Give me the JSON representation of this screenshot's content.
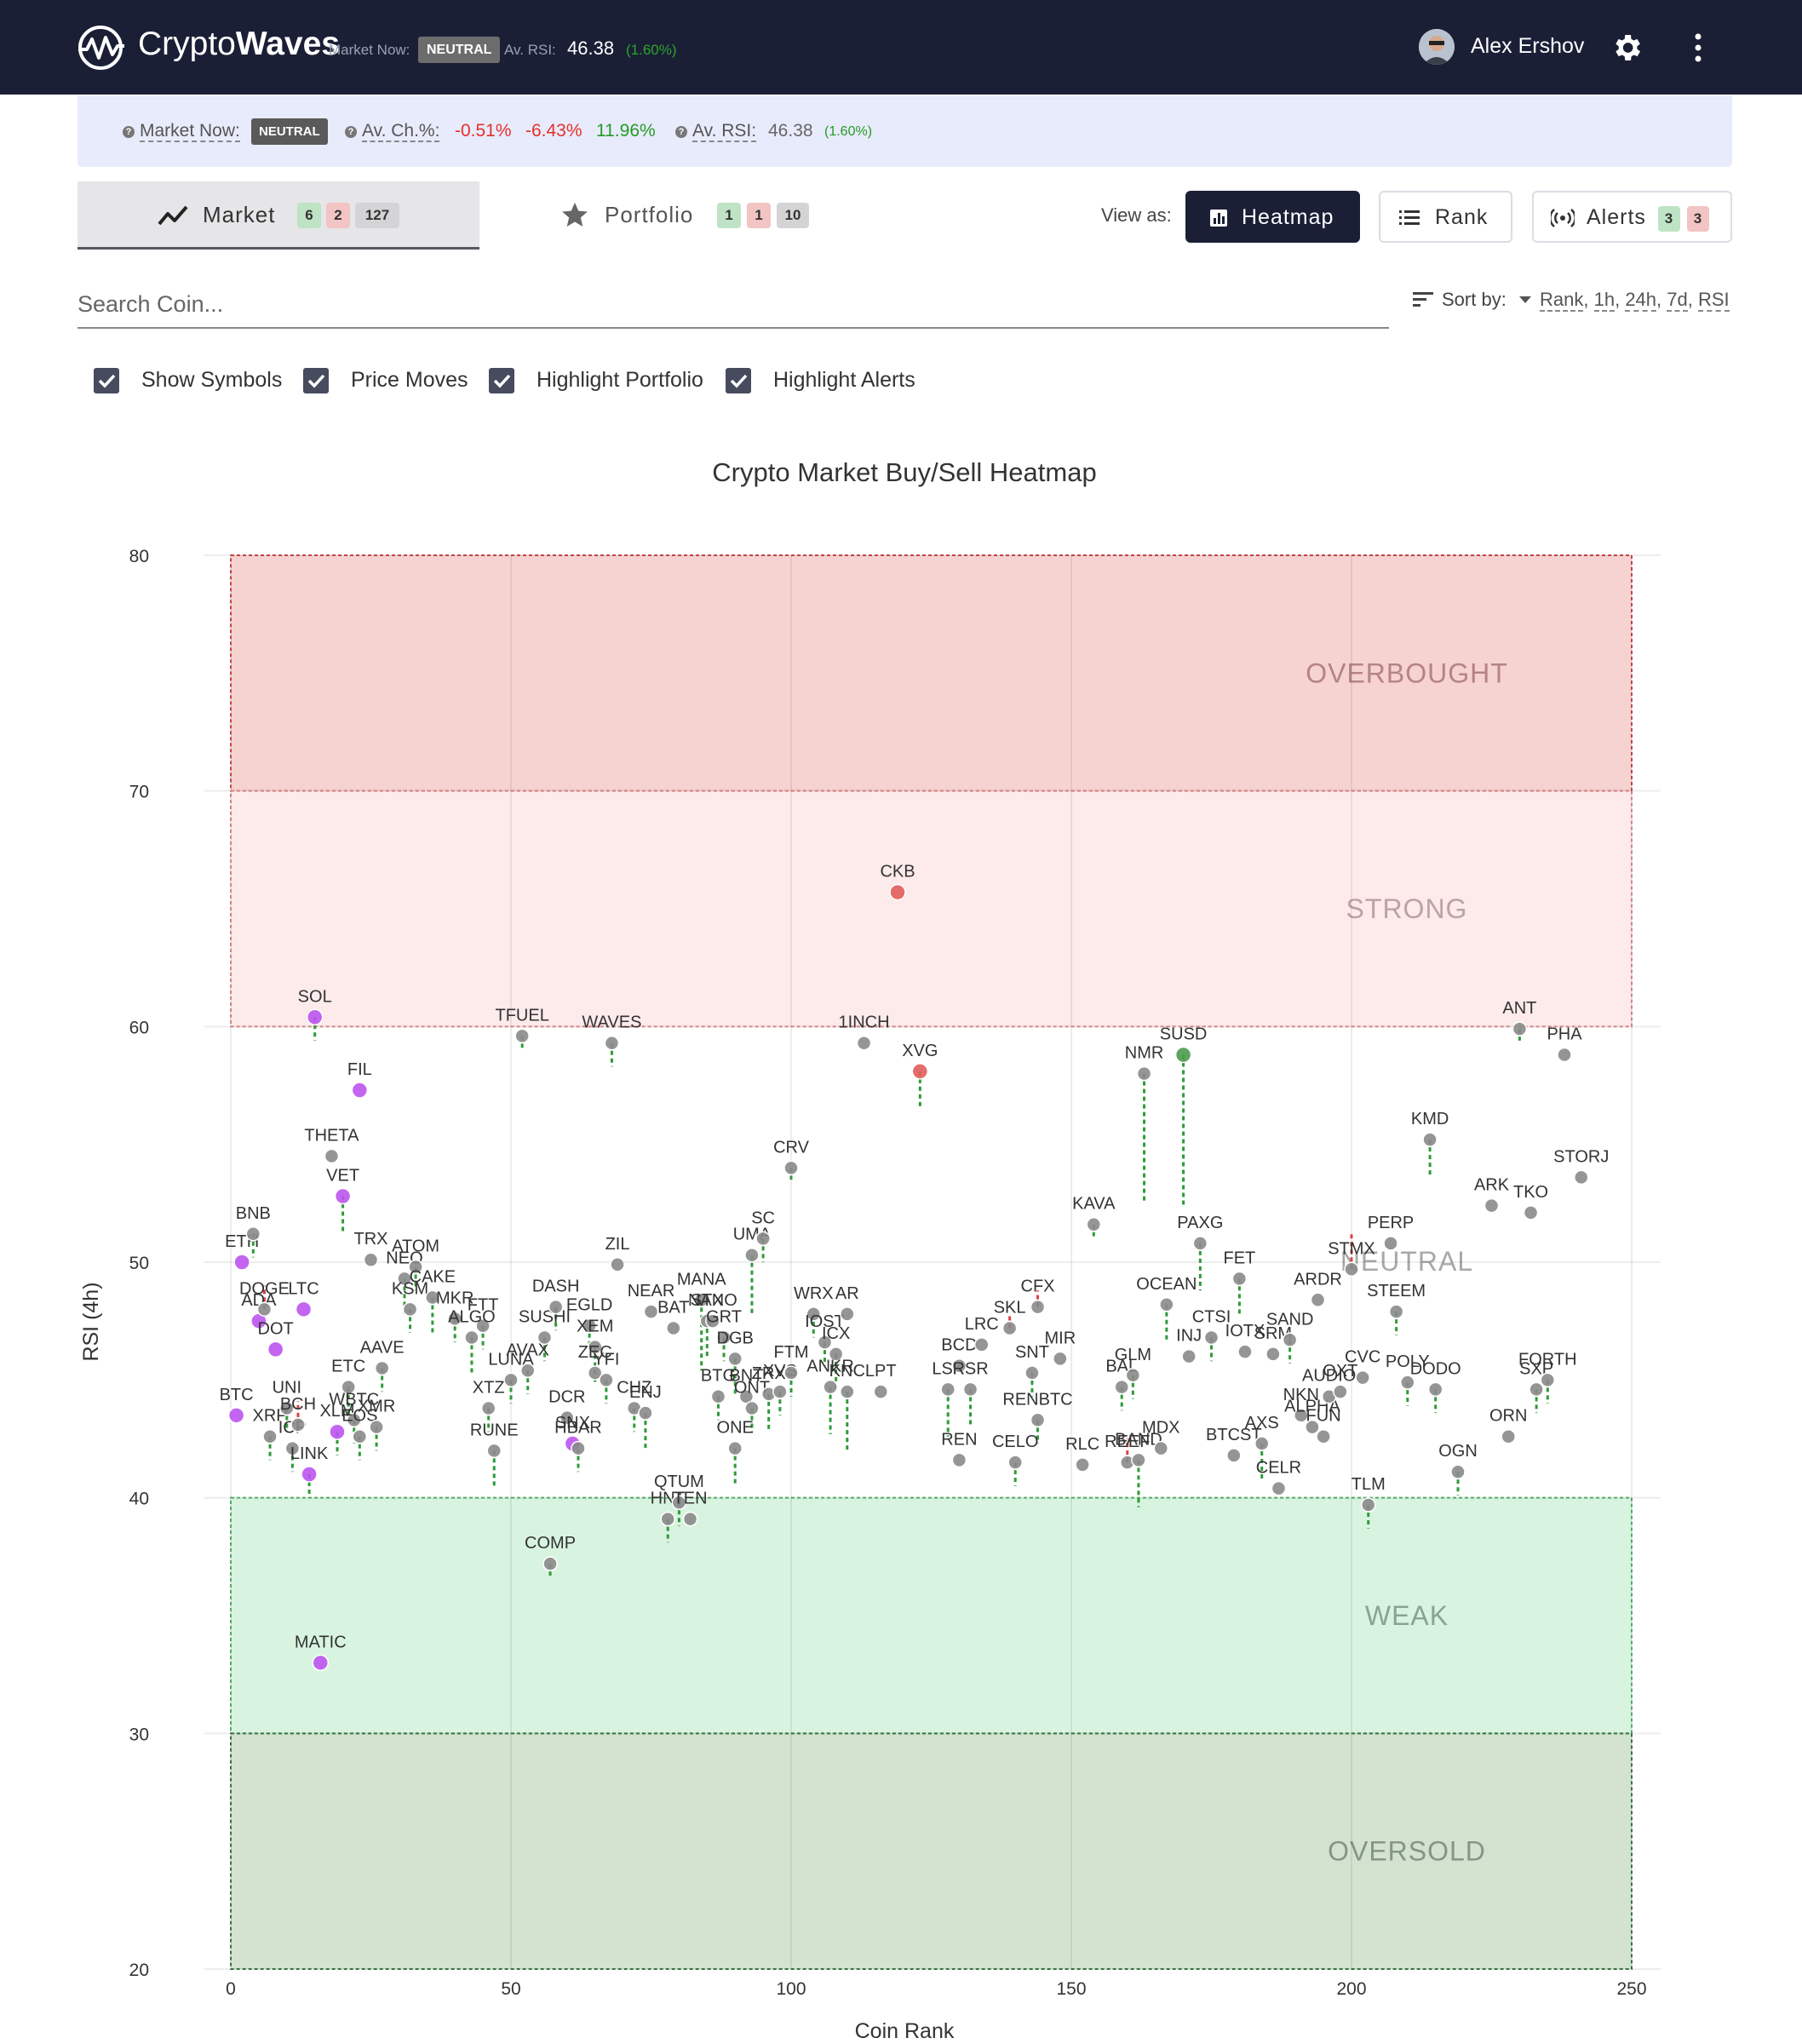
{
  "header": {
    "brand_light": "Crypto",
    "brand_bold": "Waves",
    "market_now_label": "Market Now:",
    "market_now_value": "NEUTRAL",
    "av_rsi_label": "Av. RSI:",
    "av_rsi_value": "46.38",
    "av_rsi_change": "(1.60%)",
    "user_name": "Alex Ershov",
    "icons": {
      "logo": "wave-logo-icon",
      "settings": "gear-icon",
      "menu": "kebab-menu-icon"
    }
  },
  "infobar": {
    "market_now_label": "Market Now:",
    "market_now_value": "NEUTRAL",
    "av_change_label": "Av. Ch.%:",
    "change_1": "-0.51%",
    "change_2": "-6.43%",
    "change_3": "11.96%",
    "av_rsi_label": "Av. RSI:",
    "av_rsi_value": "46.38",
    "av_rsi_change": "(1.60%)"
  },
  "tabs": {
    "market": {
      "label": "Market",
      "green": "6",
      "red": "2",
      "total": "127"
    },
    "portfolio": {
      "label": "Portfolio",
      "green": "1",
      "red": "1",
      "total": "10"
    }
  },
  "view": {
    "label": "View as:",
    "heatmap": "Heatmap",
    "rank": "Rank",
    "alerts": "Alerts",
    "alerts_green": "3",
    "alerts_red": "3"
  },
  "search": {
    "placeholder": "Search Coin..."
  },
  "sort": {
    "label": "Sort by:",
    "options": [
      "Rank",
      "1h",
      "24h",
      "7d",
      "RSI"
    ]
  },
  "checkboxes": [
    {
      "label": "Show Symbols",
      "checked": true
    },
    {
      "label": "Price Moves",
      "checked": true
    },
    {
      "label": "Highlight Portfolio",
      "checked": true
    },
    {
      "label": "Highlight Alerts",
      "checked": true
    }
  ],
  "colors": {
    "overbought": "#f6d3d0",
    "strong": "#fdeaea",
    "weak": "#d8f4e0",
    "oversold": "#d3e3cf",
    "point_default": "#8a8a8a",
    "point_portfolio": "#bd54ef",
    "point_alert_up": "#4b9a4b",
    "point_alert_down": "#e25c5c"
  },
  "chart_data": {
    "type": "scatter",
    "title": "Crypto Market Buy/Sell Heatmap",
    "xlabel": "Coin Rank",
    "ylabel": "RSI (4h)",
    "xlim": [
      0,
      250
    ],
    "ylim": [
      20,
      80
    ],
    "x_ticks": [
      0,
      50,
      100,
      150,
      200,
      250
    ],
    "y_ticks": [
      20,
      30,
      40,
      50,
      60,
      70,
      80
    ],
    "zones": [
      {
        "name": "OVERBOUGHT",
        "from": 70,
        "to": 80
      },
      {
        "name": "STRONG",
        "from": 60,
        "to": 70
      },
      {
        "name": "NEUTRAL",
        "from": 40,
        "to": 60
      },
      {
        "name": "WEAK",
        "from": 30,
        "to": 40
      },
      {
        "name": "OVERSOLD",
        "from": 20,
        "to": 30
      }
    ],
    "points": [
      {
        "s": "BTC",
        "x": 1,
        "y": 43.5,
        "t": "p"
      },
      {
        "s": "ETH",
        "x": 2,
        "y": 50,
        "t": "p"
      },
      {
        "s": "BNB",
        "x": 4,
        "y": 51.2,
        "m": -1
      },
      {
        "s": "ADA",
        "x": 5,
        "y": 47.5,
        "t": "p"
      },
      {
        "s": "DOGE",
        "x": 6,
        "y": 48,
        "m": 1
      },
      {
        "s": "XRP",
        "x": 7,
        "y": 42.6,
        "m": -1
      },
      {
        "s": "DOT",
        "x": 8,
        "y": 46.3,
        "t": "p"
      },
      {
        "s": "UNI",
        "x": 10,
        "y": 43.8,
        "m": -1
      },
      {
        "s": "ICP",
        "x": 11,
        "y": 42.1,
        "m": -1
      },
      {
        "s": "BCH",
        "x": 12,
        "y": 43.1,
        "m": 1
      },
      {
        "s": "LTC",
        "x": 13,
        "y": 48,
        "t": "p"
      },
      {
        "s": "LINK",
        "x": 14,
        "y": 41,
        "t": "p",
        "m": -1
      },
      {
        "s": "SOL",
        "x": 15,
        "y": 60.4,
        "t": "p",
        "m": -1
      },
      {
        "s": "MATIC",
        "x": 16,
        "y": 33,
        "t": "p"
      },
      {
        "s": "THETA",
        "x": 18,
        "y": 54.5
      },
      {
        "s": "XLM",
        "x": 19,
        "y": 42.8,
        "t": "p",
        "m": -1
      },
      {
        "s": "VET",
        "x": 20,
        "y": 52.8,
        "t": "p",
        "m": -1.5
      },
      {
        "s": "ETC",
        "x": 21,
        "y": 44.7,
        "m": -1.5
      },
      {
        "s": "WBTC",
        "x": 22,
        "y": 43.3,
        "m": -1
      },
      {
        "s": "EOS",
        "x": 23,
        "y": 42.6,
        "m": -1
      },
      {
        "s": "TRX",
        "x": 25,
        "y": 50.1
      },
      {
        "s": "XMR",
        "x": 26,
        "y": 43,
        "m": -1
      },
      {
        "s": "FIL",
        "x": 23,
        "y": 57.3,
        "t": "p"
      },
      {
        "s": "AAVE",
        "x": 27,
        "y": 45.5,
        "m": -1
      },
      {
        "s": "NEO",
        "x": 31,
        "y": 49.3,
        "m": -1.5
      },
      {
        "s": "KSM",
        "x": 32,
        "y": 48,
        "m": -1
      },
      {
        "s": "ATOM",
        "x": 33,
        "y": 49.8,
        "m": -1
      },
      {
        "s": "CAKE",
        "x": 36,
        "y": 48.5,
        "m": -1.5
      },
      {
        "s": "MKR",
        "x": 40,
        "y": 47.6,
        "m": -1
      },
      {
        "s": "FTT",
        "x": 45,
        "y": 47.3,
        "m": -1
      },
      {
        "s": "ALGO",
        "x": 43,
        "y": 46.8,
        "m": -1.5
      },
      {
        "s": "TFUEL",
        "x": 52,
        "y": 59.6,
        "m": -0.5
      },
      {
        "s": "RUNE",
        "x": 47,
        "y": 42,
        "m": -1.5
      },
      {
        "s": "XTZ",
        "x": 46,
        "y": 43.8,
        "m": -1
      },
      {
        "s": "LUNA",
        "x": 50,
        "y": 45,
        "m": -1
      },
      {
        "s": "AVAX",
        "x": 53,
        "y": 45.4,
        "m": -1
      },
      {
        "s": "SUSHI",
        "x": 56,
        "y": 46.8,
        "m": -1
      },
      {
        "s": "DASH",
        "x": 58,
        "y": 48.1,
        "m": -1
      },
      {
        "s": "COMP",
        "x": 57,
        "y": 37.2,
        "m": -0.5
      },
      {
        "s": "DCR",
        "x": 60,
        "y": 43.4
      },
      {
        "s": "SNX",
        "x": 61,
        "y": 42.3,
        "t": "p"
      },
      {
        "s": "HBAR",
        "x": 62,
        "y": 42.1,
        "m": -1
      },
      {
        "s": "EGLD",
        "x": 64,
        "y": 47.3,
        "m": -1
      },
      {
        "s": "XEM",
        "x": 65,
        "y": 46.4,
        "m": -1.5
      },
      {
        "s": "ZEC",
        "x": 65,
        "y": 45.3
      },
      {
        "s": "YFI",
        "x": 67,
        "y": 45,
        "m": -1
      },
      {
        "s": "WAVES",
        "x": 68,
        "y": 59.3,
        "m": -1
      },
      {
        "s": "ZIL",
        "x": 69,
        "y": 49.9
      },
      {
        "s": "CHZ",
        "x": 72,
        "y": 43.8,
        "m": -1
      },
      {
        "s": "ENJ",
        "x": 74,
        "y": 43.6,
        "m": -1.5
      },
      {
        "s": "NEAR",
        "x": 75,
        "y": 47.9
      },
      {
        "s": "HNT",
        "x": 78,
        "y": 39.1,
        "m": -1
      },
      {
        "s": "QTUM",
        "x": 80,
        "y": 39.8,
        "m": -1
      },
      {
        "s": "BAT",
        "x": 79,
        "y": 47.2
      },
      {
        "s": "TEN",
        "x": 82,
        "y": 39.1
      },
      {
        "s": "MANA",
        "x": 84,
        "y": 48.4,
        "m": -3
      },
      {
        "s": "STX",
        "x": 85,
        "y": 47.5,
        "m": -1.5
      },
      {
        "s": "NANO",
        "x": 86,
        "y": 47.5
      },
      {
        "s": "GRT",
        "x": 88,
        "y": 46.8,
        "m": -1
      },
      {
        "s": "DGB",
        "x": 90,
        "y": 45.9,
        "m": -1.5
      },
      {
        "s": "BTG",
        "x": 87,
        "y": 44.3,
        "m": -1
      },
      {
        "s": "ONE",
        "x": 90,
        "y": 42.1,
        "m": -1.5
      },
      {
        "s": "BNT",
        "x": 92,
        "y": 44.3
      },
      {
        "s": "ONT",
        "x": 93,
        "y": 43.8,
        "m": -1
      },
      {
        "s": "UMA",
        "x": 93,
        "y": 50.3,
        "m": -2.5
      },
      {
        "s": "SC",
        "x": 95,
        "y": 51,
        "m": -1
      },
      {
        "s": "ZRX",
        "x": 96,
        "y": 44.4,
        "m": -1.5
      },
      {
        "s": "XVS",
        "x": 98,
        "y": 44.5,
        "m": -1
      },
      {
        "s": "FTM",
        "x": 100,
        "y": 45.3,
        "m": -1
      },
      {
        "s": "CRV",
        "x": 100,
        "y": 54,
        "m": -0.5
      },
      {
        "s": "WRX",
        "x": 104,
        "y": 47.8,
        "m": -1
      },
      {
        "s": "IOST",
        "x": 106,
        "y": 46.6,
        "m": -1
      },
      {
        "s": "ICX",
        "x": 108,
        "y": 46.1,
        "m": -1.5
      },
      {
        "s": "ANKR",
        "x": 107,
        "y": 44.7,
        "m": -2
      },
      {
        "s": "AR",
        "x": 110,
        "y": 47.8
      },
      {
        "s": "KNC",
        "x": 110,
        "y": 44.5,
        "m": -2.5
      },
      {
        "s": "1INCH",
        "x": 113,
        "y": 59.3
      },
      {
        "s": "LPT",
        "x": 116,
        "y": 44.5
      },
      {
        "s": "CKB",
        "x": 119,
        "y": 65.7,
        "t": "d"
      },
      {
        "s": "XVG",
        "x": 123,
        "y": 58.1,
        "t": "d",
        "m": -1.5
      },
      {
        "s": "LSK",
        "x": 128,
        "y": 44.6,
        "m": -2
      },
      {
        "s": "BCD",
        "x": 130,
        "y": 45.6
      },
      {
        "s": "REN",
        "x": 130,
        "y": 41.6
      },
      {
        "s": "RSR",
        "x": 132,
        "y": 44.6,
        "m": -1.5
      },
      {
        "s": "LRC",
        "x": 134,
        "y": 46.5
      },
      {
        "s": "SKL",
        "x": 139,
        "y": 47.2,
        "m": 0.6
      },
      {
        "s": "CELO",
        "x": 140,
        "y": 41.5,
        "m": -1
      },
      {
        "s": "SNT",
        "x": 143,
        "y": 45.3,
        "m": -1
      },
      {
        "s": "REN2",
        "label": "RENBTC",
        "x": 144,
        "y": 43.3,
        "m": -1
      },
      {
        "s": "CFX",
        "x": 144,
        "y": 48.1,
        "m": 0.7
      },
      {
        "s": "MIR",
        "x": 148,
        "y": 45.9
      },
      {
        "s": "RLC",
        "x": 152,
        "y": 41.4
      },
      {
        "s": "KAVA",
        "x": 154,
        "y": 51.6,
        "m": -0.5
      },
      {
        "s": "NMR",
        "x": 163,
        "y": 58,
        "m": -5.5
      },
      {
        "s": "BAL",
        "x": 159,
        "y": 44.7,
        "m": -1
      },
      {
        "s": "GLM",
        "x": 161,
        "y": 45.2,
        "m": -1
      },
      {
        "s": "REEF",
        "x": 160,
        "y": 41.5,
        "m": 1
      },
      {
        "s": "BAND",
        "x": 162,
        "y": 41.6,
        "m": -2
      },
      {
        "s": "MDX",
        "x": 166,
        "y": 42.1
      },
      {
        "s": "SUSD",
        "x": 170,
        "y": 58.8,
        "t": "u",
        "m": -6.5
      },
      {
        "s": "OCEAN",
        "x": 167,
        "y": 48.2,
        "m": -1.5
      },
      {
        "s": "INJ",
        "x": 171,
        "y": 46
      },
      {
        "s": "PAXG",
        "x": 173,
        "y": 50.8,
        "m": -2
      },
      {
        "s": "CTSI",
        "x": 175,
        "y": 46.8,
        "m": -1
      },
      {
        "s": "BTCST",
        "x": 179,
        "y": 41.8
      },
      {
        "s": "FET",
        "x": 180,
        "y": 49.3,
        "m": -1.5
      },
      {
        "s": "IOTX",
        "x": 181,
        "y": 46.2
      },
      {
        "s": "AXS",
        "x": 184,
        "y": 42.3,
        "m": -1.5
      },
      {
        "s": "SRM",
        "x": 186,
        "y": 46.1
      },
      {
        "s": "CELR",
        "x": 187,
        "y": 40.4
      },
      {
        "s": "SAND",
        "x": 189,
        "y": 46.7,
        "m": -1
      },
      {
        "s": "NKN",
        "x": 191,
        "y": 43.5
      },
      {
        "s": "ARDR",
        "x": 194,
        "y": 48.4
      },
      {
        "s": "FUN",
        "x": 195,
        "y": 42.6
      },
      {
        "s": "ALPHA",
        "x": 193,
        "y": 43
      },
      {
        "s": "AUDIO",
        "x": 196,
        "y": 44.3
      },
      {
        "s": "OXT",
        "x": 198,
        "y": 44.5
      },
      {
        "s": "STMX",
        "x": 200,
        "y": 49.7,
        "m": 1.5
      },
      {
        "s": "TLM",
        "x": 203,
        "y": 39.7,
        "m": -1
      },
      {
        "s": "CVC",
        "x": 202,
        "y": 45.1
      },
      {
        "s": "PERP",
        "x": 207,
        "y": 50.8
      },
      {
        "s": "STEEM",
        "x": 208,
        "y": 47.9,
        "m": -1
      },
      {
        "s": "POLY",
        "x": 210,
        "y": 44.9,
        "m": -1
      },
      {
        "s": "DODO",
        "x": 215,
        "y": 44.6,
        "m": -1
      },
      {
        "s": "KMD",
        "x": 214,
        "y": 55.2,
        "m": -1.5
      },
      {
        "s": "OGN",
        "x": 219,
        "y": 41.1,
        "m": -1
      },
      {
        "s": "ARK",
        "x": 225,
        "y": 52.4
      },
      {
        "s": "ORN",
        "x": 228,
        "y": 42.6
      },
      {
        "s": "ANT",
        "x": 230,
        "y": 59.9,
        "m": -0.5
      },
      {
        "s": "TKO",
        "x": 232,
        "y": 52.1
      },
      {
        "s": "SXP",
        "x": 233,
        "y": 44.6,
        "m": -1
      },
      {
        "s": "FORTH",
        "x": 235,
        "y": 45,
        "m": -1
      },
      {
        "s": "PHA",
        "x": 238,
        "y": 58.8
      },
      {
        "s": "STORJ",
        "x": 241,
        "y": 53.6
      }
    ]
  }
}
